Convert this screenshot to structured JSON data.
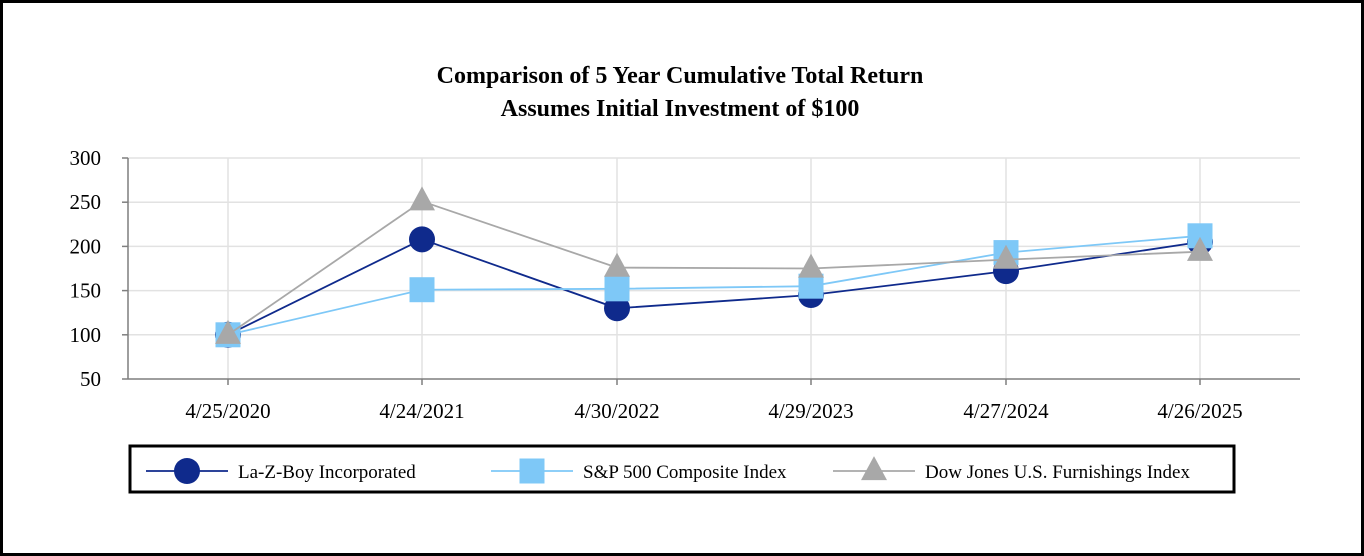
{
  "chart_data": {
    "type": "line",
    "title": "Comparison of 5 Year Cumulative Total Return",
    "subtitle": "Assumes Initial Investment of $100",
    "xlabel": "",
    "ylabel": "",
    "categories": [
      "4/25/2020",
      "4/24/2021",
      "4/30/2022",
      "4/29/2023",
      "4/27/2024",
      "4/26/2025"
    ],
    "ylim": [
      50,
      300
    ],
    "yticks": [
      50,
      100,
      150,
      200,
      250,
      300
    ],
    "grid": true,
    "legend_position": "bottom",
    "series": [
      {
        "name": "La-Z-Boy Incorporated",
        "values": [
          100,
          208,
          130,
          145,
          172,
          205
        ],
        "color": "#0f2a8c",
        "marker": "circle"
      },
      {
        "name": "S&P 500 Composite Index",
        "values": [
          100,
          151,
          152,
          155,
          193,
          212
        ],
        "color": "#7ec8f7",
        "marker": "square"
      },
      {
        "name": "Dow Jones U.S. Furnishings Index",
        "values": [
          100,
          251,
          176,
          175,
          185,
          194
        ],
        "color": "#a8a8a8",
        "marker": "triangle"
      }
    ]
  }
}
